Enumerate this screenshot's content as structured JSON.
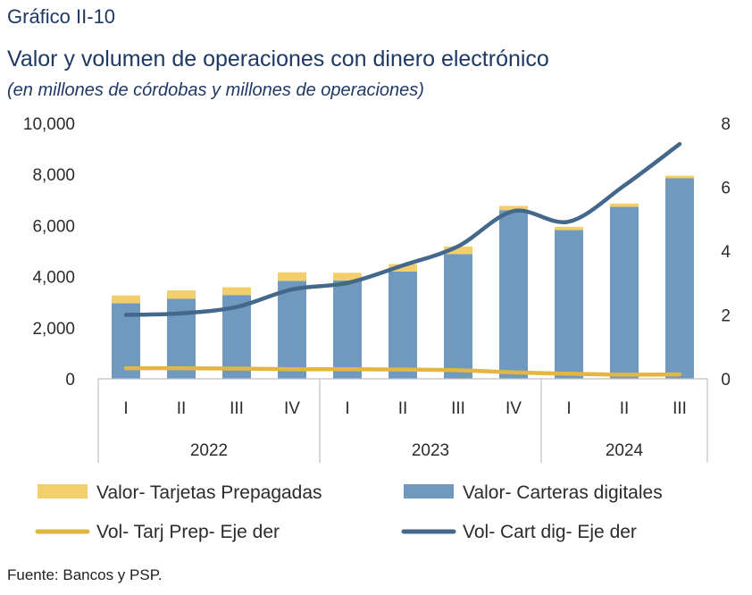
{
  "header": {
    "figure_label": "Gráfico II-10",
    "title": "Valor y volumen de operaciones con dinero electrónico",
    "subtitle": "(en millones de córdobas y millones de operaciones)"
  },
  "footer": {
    "source": "Fuente: Bancos y PSP."
  },
  "colors": {
    "bar_prepaid": "#f3cf6b",
    "bar_wallet": "#7099bf",
    "line_prepaid": "#e2b640",
    "line_wallet": "#44688c",
    "axis": "#bfbfbf"
  },
  "chart_data": {
    "type": "bar",
    "stacked": true,
    "categories": [
      "I",
      "II",
      "III",
      "IV",
      "I",
      "II",
      "III",
      "IV",
      "I",
      "II",
      "III"
    ],
    "groups": [
      {
        "label": "2022",
        "count": 4
      },
      {
        "label": "2023",
        "count": 4
      },
      {
        "label": "2024",
        "count": 3
      }
    ],
    "series": [
      {
        "name": "Valor- Carteras digitales",
        "kind": "bar",
        "axis": "left",
        "values": [
          2960,
          3130,
          3280,
          3830,
          3850,
          4200,
          4880,
          6600,
          5820,
          6730,
          7850
        ]
      },
      {
        "name": "Valor- Tarjetas Prepagadas",
        "kind": "bar",
        "axis": "left",
        "values": [
          300,
          330,
          300,
          340,
          300,
          290,
          300,
          170,
          130,
          130,
          100
        ]
      },
      {
        "name": "Vol- Tarj Prep- Eje der",
        "kind": "line",
        "axis": "right",
        "values": [
          0.33,
          0.33,
          0.32,
          0.3,
          0.3,
          0.29,
          0.27,
          0.2,
          0.16,
          0.13,
          0.14
        ]
      },
      {
        "name": "Vol- Cart dig- Eje der",
        "kind": "line",
        "axis": "right",
        "values": [
          2.0,
          2.05,
          2.25,
          2.8,
          3.0,
          3.55,
          4.15,
          5.25,
          4.92,
          6.05,
          7.35
        ]
      }
    ],
    "y_left": {
      "min": 0,
      "max": 10000,
      "ticks": [
        "0",
        "2,000",
        "4,000",
        "6,000",
        "8,000",
        "10,000"
      ]
    },
    "y_right": {
      "min": 0,
      "max": 8,
      "ticks": [
        "0",
        "2",
        "4",
        "6",
        "8"
      ]
    },
    "legend": {
      "position": "bottom",
      "items": [
        {
          "label": "Valor- Tarjetas Prepagadas",
          "kind": "bar",
          "color": "#f3cf6b"
        },
        {
          "label": "Valor- Carteras digitales",
          "kind": "bar",
          "color": "#7099bf"
        },
        {
          "label": "Vol- Tarj Prep- Eje der",
          "kind": "line",
          "color": "#e2b640"
        },
        {
          "label": "Vol- Cart dig- Eje der",
          "kind": "line",
          "color": "#44688c"
        }
      ]
    },
    "grid": false
  }
}
